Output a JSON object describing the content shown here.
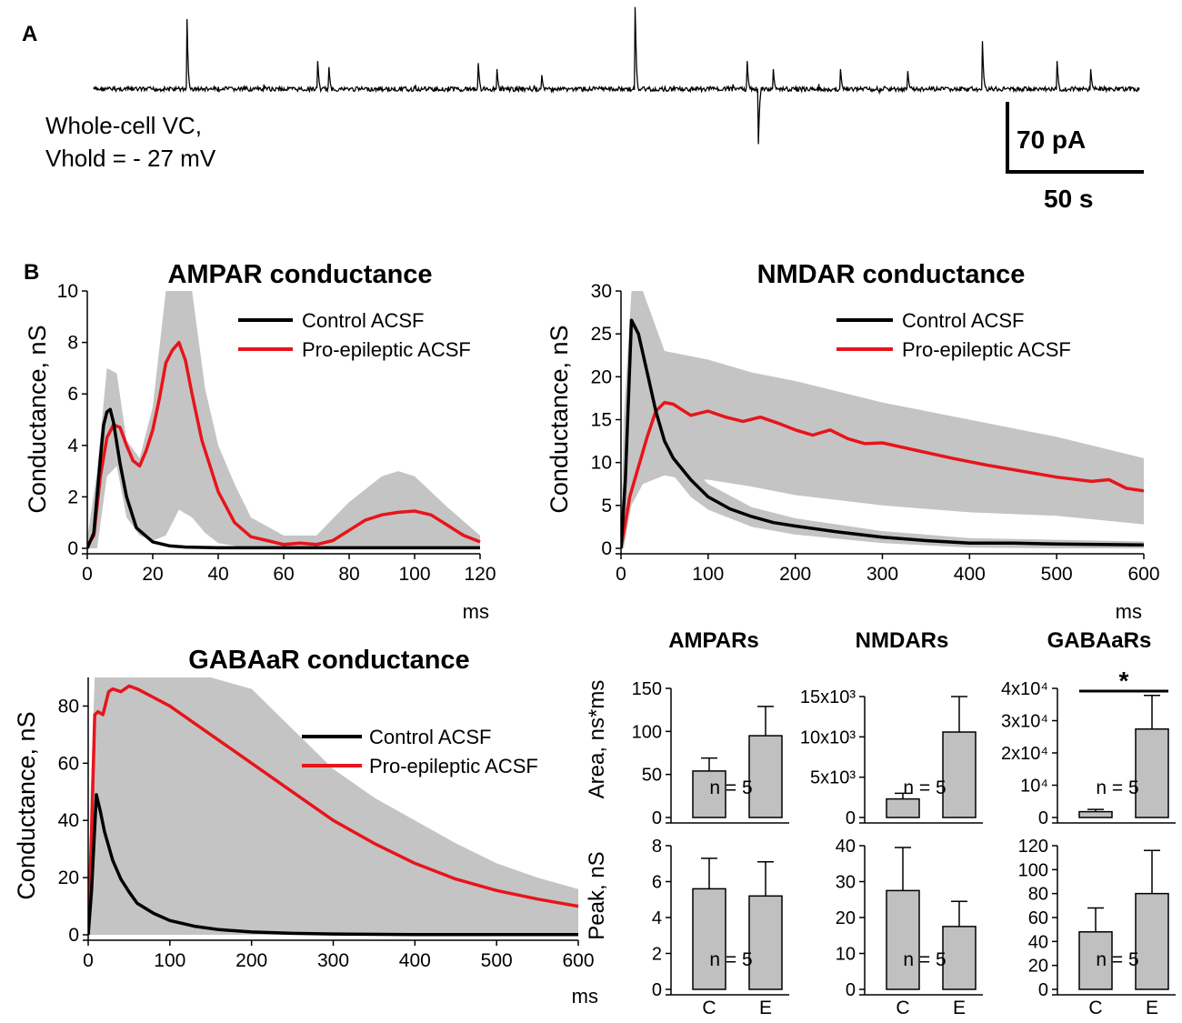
{
  "panels": {
    "a_label": "A",
    "b_label": "B"
  },
  "trace": {
    "caption_line1": "Whole-cell VC,",
    "caption_line2": "Vhold = - 27 mV",
    "scale_y": "70 pA",
    "scale_x": "50 s",
    "baseline_pA": 0,
    "events": [
      {
        "t_s": 25,
        "amp_pA": 70
      },
      {
        "t_s": 60,
        "amp_pA": 28
      },
      {
        "t_s": 63,
        "amp_pA": 22
      },
      {
        "t_s": 103,
        "amp_pA": 26
      },
      {
        "t_s": 108,
        "amp_pA": 20
      },
      {
        "t_s": 120,
        "amp_pA": 14
      },
      {
        "t_s": 145,
        "amp_pA": 82
      },
      {
        "t_s": 175,
        "amp_pA": 28
      },
      {
        "t_s": 178,
        "amp_pA": -55
      },
      {
        "t_s": 182,
        "amp_pA": 20
      },
      {
        "t_s": 200,
        "amp_pA": 20
      },
      {
        "t_s": 218,
        "amp_pA": 18
      },
      {
        "t_s": 238,
        "amp_pA": 48
      },
      {
        "t_s": 258,
        "amp_pA": 28
      },
      {
        "t_s": 267,
        "amp_pA": 20
      }
    ]
  },
  "legend": {
    "control": "Control ACSF",
    "epileptic": "Pro-epileptic ACSF"
  },
  "colors": {
    "control": "#000000",
    "epileptic": "#e8141b",
    "band": "#c4c4c4",
    "bar": "#c0c0c0"
  },
  "chart_data": [
    {
      "type": "line",
      "title": "AMPAR conductance",
      "xlabel": "ms",
      "ylabel": "Conductance, nS",
      "xlim": [
        0,
        120
      ],
      "ylim": [
        0,
        10
      ],
      "xticks": [
        "0",
        "20",
        "40",
        "60",
        "80",
        "100",
        "120"
      ],
      "yticks": [
        "0",
        "2",
        "4",
        "6",
        "8",
        "10"
      ],
      "series": [
        {
          "name": "Control ACSF",
          "x": [
            0,
            2,
            4,
            5,
            6,
            7,
            8,
            10,
            12,
            15,
            20,
            25,
            30,
            40,
            60,
            80,
            100,
            120
          ],
          "y": [
            0,
            0.6,
            3.5,
            4.8,
            5.3,
            5.4,
            4.9,
            3.3,
            2.0,
            0.8,
            0.25,
            0.1,
            0.05,
            0.02,
            0.02,
            0.02,
            0.02,
            0.02
          ]
        },
        {
          "name": "Pro-epileptic ACSF",
          "x": [
            0,
            2,
            4,
            6,
            8,
            10,
            12,
            14,
            16,
            18,
            20,
            22,
            24,
            26,
            28,
            30,
            32,
            35,
            40,
            45,
            50,
            55,
            60,
            65,
            70,
            75,
            80,
            85,
            90,
            95,
            100,
            105,
            110,
            115,
            120
          ],
          "y": [
            0.1,
            0.5,
            2.8,
            4.3,
            4.8,
            4.7,
            4.0,
            3.4,
            3.2,
            3.8,
            4.6,
            5.8,
            7.2,
            7.7,
            8.0,
            7.3,
            6.0,
            4.2,
            2.2,
            1.0,
            0.45,
            0.3,
            0.15,
            0.2,
            0.15,
            0.3,
            0.7,
            1.1,
            1.3,
            1.4,
            1.45,
            1.3,
            0.9,
            0.5,
            0.25
          ]
        }
      ],
      "bands": [
        {
          "x": [
            0,
            3,
            6,
            9,
            12,
            16,
            20,
            24,
            28,
            32,
            36,
            40,
            45,
            50,
            60,
            70,
            80,
            90,
            95,
            100,
            110,
            120
          ],
          "upper": [
            0.4,
            3.0,
            7.0,
            6.8,
            4.2,
            3.5,
            5.5,
            10.0,
            10.0,
            10.0,
            6.2,
            4.0,
            2.5,
            1.2,
            0.5,
            0.5,
            1.8,
            2.8,
            3.0,
            2.8,
            1.6,
            0.5
          ],
          "lower": [
            0,
            0,
            2.8,
            3.2,
            1.2,
            0.5,
            0.3,
            0.5,
            1.5,
            1.2,
            0.6,
            0.2,
            0.1,
            0,
            0,
            0,
            0,
            0,
            0,
            0,
            0,
            0
          ]
        }
      ]
    },
    {
      "type": "line",
      "title": "NMDAR conductance",
      "xlabel": "ms",
      "ylabel": "Conductance, nS",
      "xlim": [
        0,
        600
      ],
      "ylim": [
        0,
        30
      ],
      "xticks": [
        "0",
        "100",
        "200",
        "300",
        "400",
        "500",
        "600"
      ],
      "yticks": [
        "0",
        "5",
        "10",
        "15",
        "20",
        "25",
        "30"
      ],
      "series": [
        {
          "name": "Control ACSF",
          "x": [
            0,
            5,
            12,
            20,
            30,
            40,
            50,
            60,
            80,
            100,
            125,
            150,
            175,
            200,
            250,
            300,
            350,
            400,
            450,
            500,
            550,
            600
          ],
          "y": [
            0,
            8,
            26.6,
            25,
            20.5,
            16,
            12.5,
            10.5,
            8.0,
            6.0,
            4.6,
            3.7,
            3.0,
            2.6,
            1.9,
            1.3,
            0.9,
            0.6,
            0.6,
            0.5,
            0.45,
            0.4
          ]
        },
        {
          "name": "Pro-epileptic ACSF",
          "x": [
            0,
            10,
            20,
            30,
            40,
            50,
            60,
            80,
            100,
            120,
            140,
            160,
            180,
            200,
            220,
            240,
            260,
            280,
            300,
            340,
            380,
            420,
            460,
            500,
            540,
            560,
            580,
            600
          ],
          "y": [
            0,
            6,
            9.5,
            13,
            16,
            17,
            16.8,
            15.5,
            16.0,
            15.3,
            14.8,
            15.3,
            14.6,
            13.8,
            13.2,
            13.8,
            12.8,
            12.2,
            12.3,
            11.4,
            10.5,
            9.7,
            9.0,
            8.3,
            7.8,
            8.0,
            7.0,
            6.7
          ]
        }
      ],
      "bands": [
        {
          "x": [
            0,
            3,
            12,
            25,
            50,
            75,
            100,
            150,
            200,
            300,
            400,
            500,
            600
          ],
          "upper": [
            0,
            15,
            30,
            30,
            23,
            22.5,
            22,
            20.5,
            19.5,
            17,
            15,
            13,
            10.5
          ],
          "lower": [
            0,
            0,
            5,
            7.5,
            8.5,
            8,
            8,
            7.2,
            6.2,
            5.0,
            4.2,
            3.8,
            2.8
          ]
        },
        {
          "x": [
            0,
            5,
            12,
            20,
            40,
            60,
            80,
            100,
            150,
            200,
            300,
            400,
            500,
            600
          ],
          "upper": [
            0,
            10,
            28,
            27,
            18,
            12.5,
            9.5,
            7.5,
            4.8,
            3.5,
            2.0,
            1.2,
            1.0,
            0.8
          ],
          "lower": [
            0,
            4,
            25,
            22,
            13,
            8.5,
            6.0,
            4.5,
            2.5,
            1.6,
            0.6,
            0.1,
            0,
            0
          ]
        }
      ]
    },
    {
      "type": "line",
      "title": "GABAaR conductance",
      "xlabel": "ms",
      "ylabel": "Conductance, nS",
      "xlim": [
        0,
        600
      ],
      "ylim": [
        0,
        90
      ],
      "xticks": [
        "0",
        "100",
        "200",
        "300",
        "400",
        "500",
        "600"
      ],
      "yticks": [
        "0",
        "20",
        "40",
        "60",
        "80"
      ],
      "series": [
        {
          "name": "Control ACSF",
          "x": [
            0,
            4,
            10,
            15,
            20,
            30,
            40,
            50,
            60,
            80,
            100,
            130,
            160,
            200,
            250,
            300,
            400,
            500,
            600
          ],
          "y": [
            0,
            15,
            49,
            43,
            36,
            26,
            19.5,
            15,
            11,
            7.5,
            5,
            3,
            1.8,
            1.0,
            0.5,
            0.3,
            0.1,
            0.1,
            0.1
          ]
        },
        {
          "name": "Pro-epileptic ACSF",
          "x": [
            0,
            4,
            8,
            12,
            18,
            25,
            30,
            40,
            50,
            60,
            80,
            100,
            150,
            200,
            250,
            300,
            350,
            400,
            450,
            500,
            550,
            600
          ],
          "y": [
            0,
            35,
            77,
            78,
            77,
            85,
            86,
            85,
            87,
            86,
            83,
            80,
            70,
            60,
            50,
            40,
            32,
            25,
            19.5,
            15.5,
            12.5,
            10
          ]
        }
      ],
      "bands": [
        {
          "x": [
            0,
            3,
            8,
            50,
            100,
            150,
            200,
            250,
            300,
            350,
            400,
            450,
            500,
            550,
            600
          ],
          "upper": [
            0,
            50,
            90,
            90,
            90,
            90,
            86,
            72,
            58,
            48,
            40,
            32,
            25,
            20,
            16
          ]
        },
        {
          "x": [
            0,
            3,
            8,
            20,
            40,
            60,
            100,
            150,
            200,
            300,
            400,
            500,
            600
          ],
          "lower": [
            0,
            10,
            15,
            10,
            5,
            3,
            1,
            0,
            0,
            0,
            0,
            0,
            0
          ]
        }
      ]
    },
    {
      "type": "bar",
      "group_title": "AMPARs",
      "ylabel": "Area, ns*ms",
      "categories": [
        "C",
        "E"
      ],
      "values": [
        54,
        95
      ],
      "errors": [
        15,
        34
      ],
      "ylim": [
        0,
        150
      ],
      "yticks": [
        "0",
        "50",
        "100",
        "150"
      ],
      "annotation": "n = 5"
    },
    {
      "type": "bar",
      "group_title": "AMPARs",
      "ylabel": "Peak, nS",
      "categories": [
        "C",
        "E"
      ],
      "values": [
        5.6,
        5.2
      ],
      "errors": [
        1.7,
        1.9
      ],
      "ylim": [
        0,
        8
      ],
      "yticks": [
        "0",
        "2",
        "4",
        "6",
        "8"
      ],
      "annotation": "n = 5"
    },
    {
      "type": "bar",
      "group_title": "NMDARs",
      "ylabel": "Area, ns*ms",
      "categories": [
        "C",
        "E"
      ],
      "values": [
        2300,
        10600
      ],
      "errors": [
        700,
        4400
      ],
      "ylim": [
        0,
        15000
      ],
      "yticks": [
        "0",
        "5x10³",
        "10x10³",
        "15x10³"
      ],
      "annotation": "n = 5"
    },
    {
      "type": "bar",
      "group_title": "NMDARs",
      "ylabel": "Peak, nS",
      "categories": [
        "C",
        "E"
      ],
      "values": [
        27.5,
        17.5
      ],
      "errors": [
        12,
        7
      ],
      "ylim": [
        0,
        40
      ],
      "yticks": [
        "0",
        "10",
        "20",
        "30",
        "40"
      ],
      "annotation": "n = 5"
    },
    {
      "type": "bar",
      "group_title": "GABAaRs",
      "ylabel": "Area, ns*ms",
      "categories": [
        "C",
        "E"
      ],
      "values": [
        1800,
        27400
      ],
      "errors": [
        700,
        10400
      ],
      "ylim": [
        0,
        40000
      ],
      "yticks": [
        "0",
        "10⁴",
        "2x10⁴",
        "3x10⁴",
        "4x10⁴"
      ],
      "annotation": "n = 5",
      "significance": "*"
    },
    {
      "type": "bar",
      "group_title": "GABAaRs",
      "ylabel": "Peak, nS",
      "categories": [
        "C",
        "E"
      ],
      "values": [
        48,
        80
      ],
      "errors": [
        20,
        36
      ],
      "ylim": [
        0,
        120
      ],
      "yticks": [
        "0",
        "20",
        "40",
        "60",
        "80",
        "100",
        "120"
      ],
      "annotation": "n = 5"
    }
  ]
}
